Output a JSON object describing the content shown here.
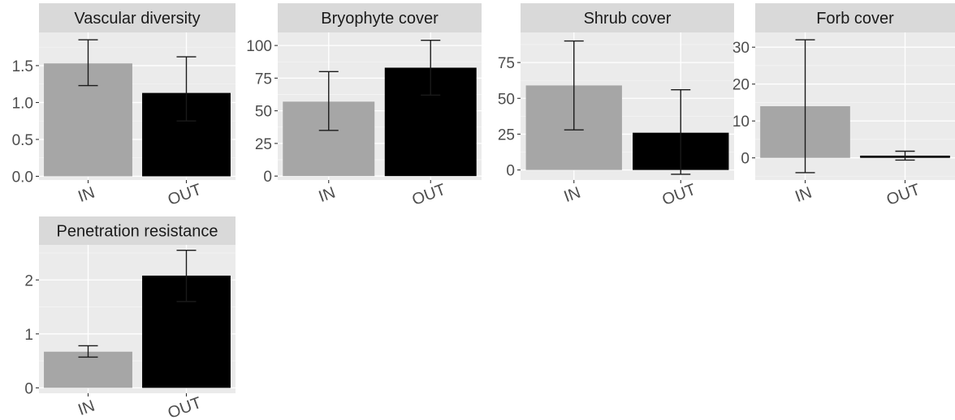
{
  "colors": {
    "panel_bg": "#ebebeb",
    "strip_bg": "#d9d9d9",
    "grid_major": "#ffffff",
    "grid_minor": "#f4f4f4",
    "text": "#1a1a1a",
    "axis_text": "#4d4d4d",
    "IN": "#a6a6a6",
    "OUT": "#000000"
  },
  "chart_data": [
    {
      "type": "bar",
      "title": "Vascular diversity",
      "categories": [
        "IN",
        "OUT"
      ],
      "values": [
        1.53,
        1.13
      ],
      "errors_low": [
        1.23,
        0.75
      ],
      "errors_high": [
        1.85,
        1.62
      ],
      "ylim": [
        -0.05,
        1.95
      ],
      "yticks": [
        0.0,
        0.5,
        1.0,
        1.5
      ],
      "ytick_labels": [
        "0.0",
        "0.5",
        "1.0",
        "1.5"
      ]
    },
    {
      "type": "bar",
      "title": "Bryophyte cover",
      "categories": [
        "IN",
        "OUT"
      ],
      "values": [
        57,
        83
      ],
      "errors_low": [
        35,
        62
      ],
      "errors_high": [
        80,
        104
      ],
      "ylim": [
        -3,
        110
      ],
      "yticks": [
        0,
        25,
        50,
        75,
        100
      ],
      "ytick_labels": [
        "0",
        "25",
        "50",
        "75",
        "100"
      ]
    },
    {
      "type": "bar",
      "title": "Shrub cover",
      "categories": [
        "IN",
        "OUT"
      ],
      "values": [
        59,
        26
      ],
      "errors_low": [
        28,
        -3
      ],
      "errors_high": [
        90,
        56
      ],
      "ylim": [
        -7,
        96
      ],
      "yticks": [
        0,
        25,
        50,
        75
      ],
      "ytick_labels": [
        "0",
        "25",
        "50",
        "75"
      ]
    },
    {
      "type": "bar",
      "title": "Forb cover",
      "categories": [
        "IN",
        "OUT"
      ],
      "values": [
        14,
        0.6
      ],
      "errors_low": [
        -4,
        -0.6
      ],
      "errors_high": [
        32,
        1.8
      ],
      "ylim": [
        -6,
        34
      ],
      "yticks": [
        0,
        10,
        20,
        30
      ],
      "ytick_labels": [
        "0",
        "10",
        "20",
        "30"
      ]
    },
    {
      "type": "bar",
      "title": "Penetration resistance",
      "categories": [
        "IN",
        "OUT"
      ],
      "values": [
        0.67,
        2.08
      ],
      "errors_low": [
        0.57,
        1.6
      ],
      "errors_high": [
        0.78,
        2.55
      ],
      "ylim": [
        -0.1,
        2.65
      ],
      "yticks": [
        0,
        1,
        2
      ],
      "ytick_labels": [
        "0",
        "1",
        "2"
      ]
    }
  ]
}
